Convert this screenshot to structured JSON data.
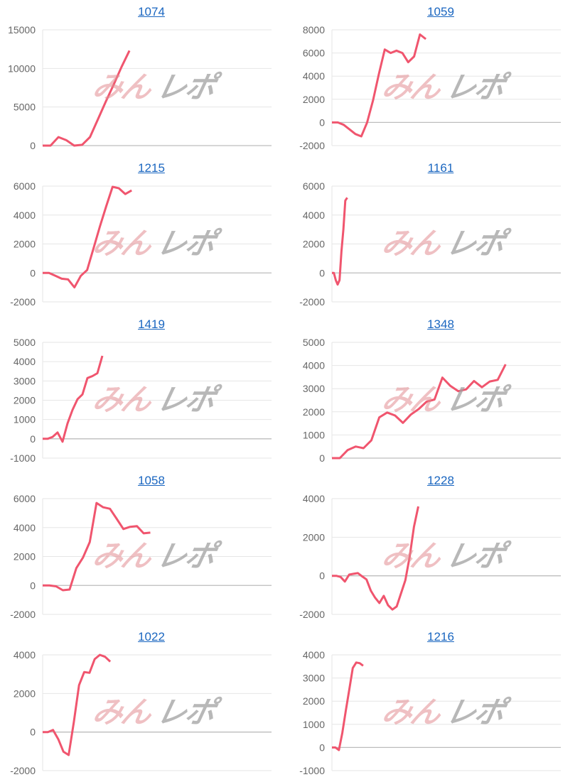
{
  "watermark": {
    "logo_text_part1": "みん",
    "logo_text_part2": "レポ",
    "colors": {
      "part1": "#e28c91",
      "part2": "#a0a0a0"
    }
  },
  "line_color": "#f0556e",
  "chart_data": [
    {
      "type": "line",
      "title": "1074",
      "ylim": [
        0,
        15000
      ],
      "ytick_step": 5000,
      "xlim": [
        0,
        29
      ],
      "grid": true,
      "values": [
        0,
        0,
        1100,
        700,
        0,
        100,
        1100,
        3400,
        5700,
        7900,
        10200,
        12300
      ]
    },
    {
      "type": "line",
      "title": "1059",
      "ylim": [
        -2000,
        8000
      ],
      "ytick_step": 2000,
      "xlim": [
        0,
        39
      ],
      "grid": true,
      "values": [
        0,
        0,
        -200,
        -600,
        -1000,
        -1200,
        0,
        1900,
        4200,
        6300,
        6000,
        6200,
        6000,
        5200,
        5700,
        7600,
        7200
      ]
    },
    {
      "type": "line",
      "title": "1215",
      "ylim": [
        -2000,
        6000
      ],
      "ytick_step": 2000,
      "xlim": [
        0,
        36
      ],
      "grid": true,
      "values": [
        0,
        0,
        -200,
        -400,
        -450,
        -1000,
        -200,
        200,
        1700,
        3200,
        4600,
        5950,
        5850,
        5450,
        5700
      ]
    },
    {
      "type": "line",
      "title": "1161",
      "ylim": [
        -2000,
        6000
      ],
      "ytick_step": 2000,
      "xlim": [
        0,
        120
      ],
      "grid": true,
      "values": [
        0,
        0,
        -500,
        -800,
        -500,
        1500,
        3000,
        5000,
        5200
      ]
    },
    {
      "type": "line",
      "title": "1419",
      "ylim": [
        -1000,
        5000
      ],
      "ytick_step": 1000,
      "xlim": [
        0,
        46
      ],
      "grid": true,
      "values": [
        0,
        0,
        100,
        330,
        -150,
        800,
        1500,
        2050,
        2300,
        3150,
        3250,
        3400,
        4300
      ]
    },
    {
      "type": "line",
      "title": "1348",
      "ylim": [
        0,
        5000
      ],
      "ytick_step": 1000,
      "xlim": [
        0,
        29
      ],
      "grid": true,
      "values": [
        0,
        0,
        350,
        500,
        430,
        770,
        1760,
        1970,
        1840,
        1520,
        1880,
        2120,
        2440,
        2530,
        3480,
        3120,
        2890,
        2970,
        3330,
        3060,
        3310,
        3380,
        4050
      ]
    },
    {
      "type": "line",
      "title": "1058",
      "ylim": [
        -2000,
        6000
      ],
      "ytick_step": 2000,
      "xlim": [
        0,
        34
      ],
      "grid": true,
      "values": [
        0,
        0,
        -60,
        -330,
        -280,
        1200,
        1930,
        3000,
        5700,
        5400,
        5300,
        4600,
        3900,
        4050,
        4100,
        3600,
        3650
      ]
    },
    {
      "type": "line",
      "title": "1228",
      "ylim": [
        -2000,
        4000
      ],
      "ytick_step": 2000,
      "xlim": [
        0,
        53
      ],
      "grid": true,
      "values": [
        0,
        0,
        -60,
        -300,
        60,
        100,
        140,
        -30,
        -190,
        -770,
        -1140,
        -1410,
        -1040,
        -1530,
        -1750,
        -1590,
        -910,
        -230,
        1000,
        2540,
        3590
      ]
    },
    {
      "type": "line",
      "title": "1022",
      "ylim": [
        -2000,
        4000
      ],
      "ytick_step": 2000,
      "xlim": [
        0,
        44
      ],
      "grid": true,
      "values": [
        0,
        0,
        110,
        -370,
        -1020,
        -1190,
        520,
        2430,
        3110,
        3070,
        3780,
        4000,
        3900,
        3650
      ]
    },
    {
      "type": "line",
      "title": "1216",
      "ylim": [
        -1000,
        4000
      ],
      "ytick_step": 1000,
      "xlim": [
        0,
        66
      ],
      "grid": true,
      "values": [
        0,
        0,
        -110,
        630,
        1590,
        2500,
        3430,
        3670,
        3640,
        3530
      ]
    }
  ]
}
